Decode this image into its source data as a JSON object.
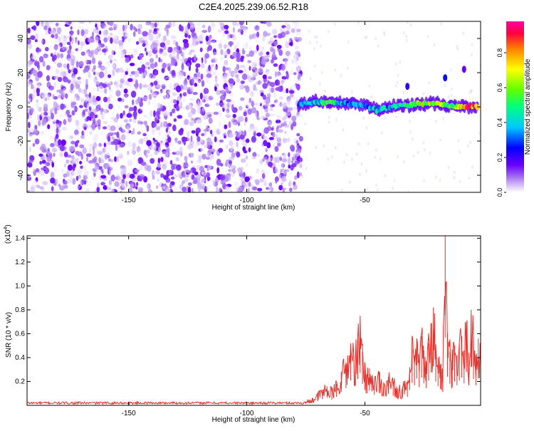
{
  "page_title": "C2E4.2025.239.06.52.R18",
  "chart_data": [
    {
      "type": "heatmap",
      "title": "C2E4.2025.239.06.52.R18",
      "xlabel": "Height of straight line (km)",
      "ylabel": "Frequency (Hz)",
      "xlim": [
        -193,
        -1
      ],
      "ylim": [
        -50,
        50
      ],
      "xticks": [
        -150,
        -100,
        -50
      ],
      "yticks": [
        -40,
        -20,
        0,
        20,
        40
      ],
      "grid": false,
      "description_of_field": {
        "noise_region_x": [
          -193,
          -77
        ],
        "noise_amplitude_range": [
          0.0,
          0.2
        ],
        "signal_band": [
          {
            "x": -78,
            "freq": 1.5,
            "amplitude": 0.3
          },
          {
            "x": -70,
            "freq": 3,
            "amplitude": 0.4
          },
          {
            "x": -65,
            "freq": 2.5,
            "amplitude": 0.5
          },
          {
            "x": -58,
            "freq": 2,
            "amplitude": 0.35
          },
          {
            "x": -50,
            "freq": 1,
            "amplitude": 0.3
          },
          {
            "x": -45,
            "freq": -2,
            "amplitude": 0.4
          },
          {
            "x": -40,
            "freq": 0,
            "amplitude": 0.35
          },
          {
            "x": -33,
            "freq": 1,
            "amplitude": 0.45
          },
          {
            "x": -25,
            "freq": 2,
            "amplitude": 0.6
          },
          {
            "x": -18,
            "freq": 1.5,
            "amplitude": 0.55
          },
          {
            "x": -12,
            "freq": 0,
            "amplitude": 0.5
          },
          {
            "x": -6,
            "freq": 0,
            "amplitude": 0.9
          },
          {
            "x": -2,
            "freq": 0,
            "amplitude": 0.7
          }
        ],
        "isolated_spots": [
          {
            "x": -16,
            "freq": 17,
            "amplitude": 0.3
          },
          {
            "x": -32,
            "freq": 12,
            "amplitude": 0.25
          },
          {
            "x": -8,
            "freq": 22,
            "amplitude": 0.2
          }
        ]
      },
      "colorbar": {
        "label": "Normalized spectral amplitude",
        "ticks": [
          0.0,
          0.2,
          0.4,
          0.6,
          0.8
        ],
        "range": [
          0.0,
          0.98
        ],
        "colors": [
          "#ffffff",
          "#b088f0",
          "#6a00ff",
          "#0000ff",
          "#00c8ff",
          "#00ff80",
          "#40ff00",
          "#ffff00",
          "#ff8000",
          "#ff0040",
          "#ff00a0"
        ]
      }
    },
    {
      "type": "line",
      "xlabel": "Height of straight line (km)",
      "ylabel": "SNR (10 * v/v)",
      "multiplier_label": "(x10",
      "multiplier_exp": "4",
      "xlim": [
        -193,
        -1
      ],
      "ylim": [
        0,
        1.42
      ],
      "xticks": [
        -150,
        -100,
        -50
      ],
      "yticks": [
        0.2,
        0.4,
        0.6,
        0.8,
        1.0,
        1.2,
        1.4
      ],
      "color": "#e8302a",
      "series": [
        {
          "x": [
            -193,
            -180,
            -160,
            -140,
            -120,
            -100,
            -85,
            -78,
            -75,
            -72,
            -70,
            -68,
            -66,
            -64,
            -62,
            -60,
            -58,
            -56,
            -54,
            -53,
            -52,
            -51,
            -50,
            -49,
            -48,
            -46,
            -44,
            -42,
            -40,
            -38,
            -36,
            -34,
            -32,
            -31,
            -30,
            -29,
            -28,
            -27,
            -26,
            -25,
            -24,
            -23,
            -22,
            -21,
            -20,
            -19,
            -18,
            -17,
            -16,
            -15,
            -14,
            -13,
            -12,
            -11,
            -10,
            -9,
            -8,
            -7,
            -6,
            -5,
            -4,
            -3,
            -2,
            -1
          ],
          "y": [
            0.02,
            0.02,
            0.02,
            0.02,
            0.02,
            0.02,
            0.02,
            0.02,
            0.03,
            0.06,
            0.09,
            0.13,
            0.16,
            0.12,
            0.18,
            0.28,
            0.36,
            0.52,
            0.42,
            0.55,
            0.68,
            0.45,
            0.32,
            0.25,
            0.31,
            0.22,
            0.26,
            0.18,
            0.24,
            0.2,
            0.14,
            0.16,
            0.18,
            0.32,
            0.47,
            0.42,
            0.56,
            0.38,
            0.58,
            0.46,
            0.36,
            0.52,
            0.69,
            0.82,
            0.5,
            0.4,
            0.34,
            0.28,
            1.42,
            0.6,
            0.45,
            0.38,
            0.5,
            0.42,
            0.52,
            0.58,
            0.46,
            0.7,
            0.44,
            0.8,
            0.55,
            0.42,
            0.56,
            0.6
          ]
        }
      ]
    }
  ]
}
